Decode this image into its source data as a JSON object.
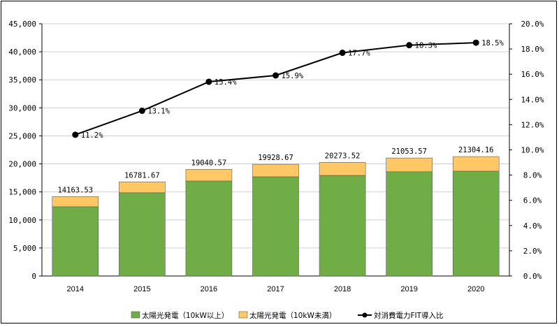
{
  "chart_data": {
    "type": "bar",
    "categories": [
      "2014",
      "2015",
      "2016",
      "2017",
      "2018",
      "2019",
      "2020"
    ],
    "series": [
      {
        "name": "太陽光発電（10kW以上）",
        "type": "stacked-bar",
        "axis": "left",
        "color": "#70AD47",
        "values": [
          12350,
          14850,
          16950,
          17700,
          17950,
          18600,
          18700
        ]
      },
      {
        "name": "太陽光発電（10kW未満）",
        "type": "stacked-bar",
        "axis": "left",
        "color": "#FFC864",
        "values": [
          1813.53,
          1931.67,
          2090.57,
          2228.67,
          2323.52,
          2453.57,
          2604.16
        ]
      },
      {
        "name": "対消費電力FIT導入比",
        "type": "line",
        "axis": "right",
        "color": "#000000",
        "values": [
          11.2,
          13.1,
          15.4,
          15.9,
          17.7,
          18.3,
          18.5
        ]
      }
    ],
    "totals": [
      14163.53,
      16781.67,
      19040.57,
      19928.67,
      20273.52,
      21053.57,
      21304.16
    ],
    "total_labels": [
      "14163.53",
      "16781.67",
      "19040.57",
      "19928.67",
      "20273.52",
      "21053.57",
      "21304.16"
    ],
    "line_labels": [
      "11.2%",
      "13.1%",
      "15.4%",
      "15.9%",
      "17.7%",
      "18.3%",
      "18.5%"
    ],
    "y_left": {
      "ylim": [
        0,
        45000
      ],
      "ticks": [
        0,
        5000,
        10000,
        15000,
        20000,
        25000,
        30000,
        35000,
        40000,
        45000
      ],
      "tick_labels": [
        "0",
        "5,000",
        "10,000",
        "15,000",
        "20,000",
        "25,000",
        "30,000",
        "35,000",
        "40,000",
        "45,000"
      ]
    },
    "y_right": {
      "ylim": [
        0,
        20
      ],
      "ticks": [
        0,
        2,
        4,
        6,
        8,
        10,
        12,
        14,
        16,
        18,
        20
      ],
      "tick_labels": [
        "0.0%",
        "2.0%",
        "4.0%",
        "6.0%",
        "8.0%",
        "10.0%",
        "12.0%",
        "14.0%",
        "16.0%",
        "18.0%",
        "20.0%"
      ]
    },
    "grid": true,
    "legend_position": "bottom"
  }
}
